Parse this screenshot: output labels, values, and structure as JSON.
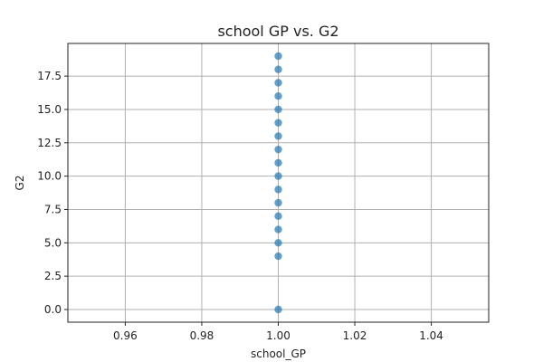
{
  "chart_data": {
    "type": "scatter",
    "title": "school GP vs. G2",
    "xlabel": "school_GP",
    "ylabel": "G2",
    "xlim": [
      0.945,
      1.055
    ],
    "ylim": [
      -0.95,
      19.95
    ],
    "xticks": [
      0.96,
      0.98,
      1.0,
      1.02,
      1.04
    ],
    "xtick_labels": [
      "0.96",
      "0.98",
      "1.00",
      "1.02",
      "1.04"
    ],
    "yticks": [
      0.0,
      2.5,
      5.0,
      7.5,
      10.0,
      12.5,
      15.0,
      17.5
    ],
    "ytick_labels": [
      "0.0",
      "2.5",
      "5.0",
      "7.5",
      "10.0",
      "12.5",
      "15.0",
      "17.5"
    ],
    "grid": true,
    "marker_color": "#1f77b4",
    "points": [
      {
        "x": 1.0,
        "y": 0
      },
      {
        "x": 1.0,
        "y": 4
      },
      {
        "x": 1.0,
        "y": 5
      },
      {
        "x": 1.0,
        "y": 6
      },
      {
        "x": 1.0,
        "y": 7
      },
      {
        "x": 1.0,
        "y": 8
      },
      {
        "x": 1.0,
        "y": 9
      },
      {
        "x": 1.0,
        "y": 10
      },
      {
        "x": 1.0,
        "y": 11
      },
      {
        "x": 1.0,
        "y": 12
      },
      {
        "x": 1.0,
        "y": 13
      },
      {
        "x": 1.0,
        "y": 14
      },
      {
        "x": 1.0,
        "y": 15
      },
      {
        "x": 1.0,
        "y": 16
      },
      {
        "x": 1.0,
        "y": 17
      },
      {
        "x": 1.0,
        "y": 18
      },
      {
        "x": 1.0,
        "y": 19
      }
    ]
  }
}
